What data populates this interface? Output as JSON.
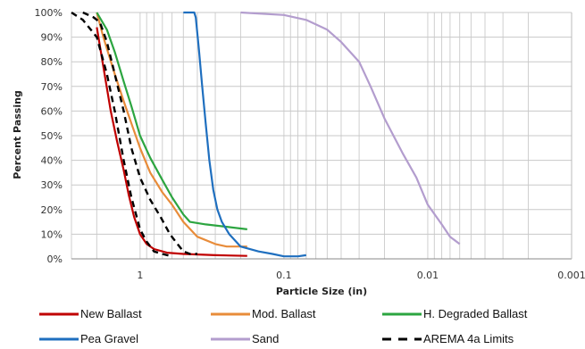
{
  "chart_data": {
    "type": "line",
    "xlabel": "Particle Size (in)",
    "ylabel": "Percent Passing",
    "x_scale": "log",
    "x_reversed": true,
    "xlim": [
      3,
      0.001
    ],
    "ylim": [
      0,
      100
    ],
    "x_ticks": [
      {
        "value": 1,
        "label": "1"
      },
      {
        "value": 0.1,
        "label": "0.1"
      },
      {
        "value": 0.01,
        "label": "0.01"
      },
      {
        "value": 0.001,
        "label": "0.001"
      }
    ],
    "y_ticks": [
      {
        "value": 0,
        "label": "0%"
      },
      {
        "value": 10,
        "label": "10%"
      },
      {
        "value": 20,
        "label": "20%"
      },
      {
        "value": 30,
        "label": "30%"
      },
      {
        "value": 40,
        "label": "40%"
      },
      {
        "value": 50,
        "label": "50%"
      },
      {
        "value": 60,
        "label": "60%"
      },
      {
        "value": 70,
        "label": "70%"
      },
      {
        "value": 80,
        "label": "80%"
      },
      {
        "value": 90,
        "label": "90%"
      },
      {
        "value": 100,
        "label": "100%"
      }
    ],
    "grid": "horizontal major, vertical minor (log)",
    "legend_position": "bottom",
    "series": [
      {
        "name": "New Ballast",
        "color": "#c00000",
        "style": "solid",
        "points": [
          [
            2.0,
            94
          ],
          [
            1.8,
            78
          ],
          [
            1.6,
            60
          ],
          [
            1.45,
            48
          ],
          [
            1.3,
            36
          ],
          [
            1.2,
            26
          ],
          [
            1.1,
            17
          ],
          [
            1.0,
            10
          ],
          [
            0.9,
            6
          ],
          [
            0.8,
            4
          ],
          [
            0.65,
            2.5
          ],
          [
            0.5,
            2
          ],
          [
            0.3,
            1.5
          ],
          [
            0.18,
            1.2
          ]
        ]
      },
      {
        "name": "Mod. Ballast",
        "color": "#e88c3a",
        "style": "solid",
        "points": [
          [
            2.0,
            100
          ],
          [
            1.8,
            90
          ],
          [
            1.5,
            75
          ],
          [
            1.3,
            64
          ],
          [
            1.15,
            55
          ],
          [
            1.0,
            45
          ],
          [
            0.85,
            35
          ],
          [
            0.7,
            27
          ],
          [
            0.6,
            22
          ],
          [
            0.5,
            15
          ],
          [
            0.4,
            9
          ],
          [
            0.3,
            6
          ],
          [
            0.25,
            5
          ],
          [
            0.18,
            5
          ]
        ]
      },
      {
        "name": "H. Degraded Ballast",
        "color": "#2ca540",
        "style": "solid",
        "points": [
          [
            2.0,
            100
          ],
          [
            1.7,
            93
          ],
          [
            1.5,
            84
          ],
          [
            1.3,
            72
          ],
          [
            1.15,
            62
          ],
          [
            1.0,
            50
          ],
          [
            0.85,
            41
          ],
          [
            0.7,
            32
          ],
          [
            0.6,
            25
          ],
          [
            0.5,
            18
          ],
          [
            0.45,
            15
          ],
          [
            0.35,
            14
          ],
          [
            0.25,
            13
          ],
          [
            0.18,
            12
          ]
        ]
      },
      {
        "name": "Pea Gravel",
        "color": "#1f6fbf",
        "style": "solid",
        "points": [
          [
            0.5,
            100
          ],
          [
            0.42,
            100
          ],
          [
            0.41,
            98
          ],
          [
            0.39,
            85
          ],
          [
            0.37,
            70
          ],
          [
            0.35,
            55
          ],
          [
            0.33,
            40
          ],
          [
            0.31,
            28
          ],
          [
            0.29,
            20
          ],
          [
            0.27,
            15
          ],
          [
            0.24,
            10
          ],
          [
            0.2,
            5
          ],
          [
            0.15,
            3
          ],
          [
            0.12,
            2
          ],
          [
            0.1,
            1
          ],
          [
            0.08,
            1
          ],
          [
            0.07,
            1.5
          ]
        ]
      },
      {
        "name": "Sand",
        "color": "#b39dce",
        "style": "solid",
        "points": [
          [
            0.2,
            100
          ],
          [
            0.1,
            99
          ],
          [
            0.07,
            97
          ],
          [
            0.05,
            93
          ],
          [
            0.04,
            88
          ],
          [
            0.03,
            80
          ],
          [
            0.025,
            70
          ],
          [
            0.02,
            57
          ],
          [
            0.015,
            43
          ],
          [
            0.012,
            33
          ],
          [
            0.01,
            22
          ],
          [
            0.008,
            14
          ],
          [
            0.007,
            9
          ],
          [
            0.006,
            6
          ]
        ]
      },
      {
        "name": "AREMA 4a Limits",
        "color": "#000000",
        "style": "dashed",
        "points": [
          [
            3.0,
            100
          ],
          [
            2.5,
            97
          ],
          [
            2.0,
            90
          ],
          [
            1.7,
            75
          ],
          [
            1.5,
            60
          ],
          [
            1.3,
            40
          ],
          [
            1.15,
            25
          ],
          [
            1.0,
            12
          ],
          [
            0.9,
            7
          ],
          [
            0.8,
            3
          ],
          [
            0.7,
            2
          ],
          [
            0.6,
            1
          ]
        ],
        "points2": [
          [
            2.5,
            100
          ],
          [
            2.1,
            98
          ],
          [
            1.9,
            96
          ],
          [
            1.7,
            88
          ],
          [
            1.5,
            75
          ],
          [
            1.3,
            60
          ],
          [
            1.15,
            45
          ],
          [
            1.0,
            33
          ],
          [
            0.85,
            24
          ],
          [
            0.72,
            17
          ],
          [
            0.62,
            10
          ],
          [
            0.55,
            6
          ],
          [
            0.5,
            3
          ],
          [
            0.45,
            2
          ],
          [
            0.4,
            2
          ]
        ]
      }
    ]
  }
}
